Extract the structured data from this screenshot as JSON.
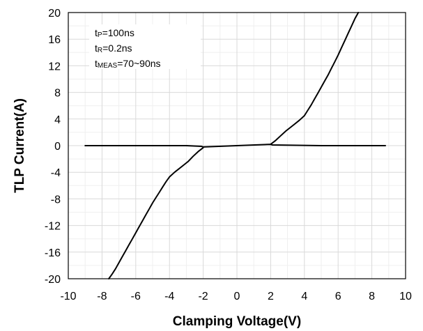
{
  "chart_data": {
    "type": "line",
    "xlabel": "Clamping Voltage(V)",
    "ylabel": "TLP Current(A)",
    "xlim": [
      -10,
      10
    ],
    "ylim": [
      -20,
      20
    ],
    "x_ticks": [
      -10,
      -8,
      -6,
      -4,
      -2,
      0,
      2,
      4,
      6,
      8,
      10
    ],
    "y_ticks": [
      -20,
      -16,
      -12,
      -8,
      -4,
      0,
      4,
      8,
      12,
      16,
      20
    ],
    "x_minor_step": 1,
    "y_minor_step": 2,
    "grid": true,
    "annotations": [
      {
        "main": "t",
        "sub": "P",
        "rest": "=100ns"
      },
      {
        "main": "t",
        "sub": "R",
        "rest": "=0.2ns"
      },
      {
        "main": "t",
        "sub": "MEAS",
        "rest": "=70~90ns"
      }
    ],
    "series": [
      {
        "x": [
          -9.0,
          -6.0,
          -3.0,
          -2.1,
          -2.0,
          0.0,
          2.0,
          2.1,
          5.0,
          8.8
        ],
        "y": [
          0.0,
          0.0,
          0.0,
          -0.1,
          -0.2,
          0.0,
          0.2,
          0.1,
          0.0,
          0.0
        ]
      },
      {
        "x": [
          2.0,
          2.3,
          2.6,
          2.9,
          3.3,
          3.7,
          4.0,
          4.2,
          4.4,
          4.6,
          4.8,
          5.0,
          5.2,
          5.4,
          5.6,
          5.8,
          6.0,
          6.2,
          6.4,
          6.6,
          6.8,
          7.0,
          7.2
        ],
        "y": [
          0.2,
          0.8,
          1.5,
          2.2,
          3.0,
          3.8,
          4.5,
          5.3,
          6.1,
          7.0,
          7.9,
          8.8,
          9.7,
          10.6,
          11.6,
          12.6,
          13.6,
          14.7,
          15.8,
          16.9,
          18.0,
          19.1,
          20.0
        ]
      },
      {
        "x": [
          -2.0,
          -2.3,
          -2.6,
          -2.9,
          -3.3,
          -3.7,
          -4.0,
          -4.2,
          -4.4,
          -4.6,
          -4.8,
          -5.0,
          -5.2,
          -5.4,
          -5.6,
          -5.8,
          -6.0,
          -6.2,
          -6.4,
          -6.6,
          -6.8,
          -7.0,
          -7.2,
          -7.4,
          -7.6
        ],
        "y": [
          -0.3,
          -0.9,
          -1.6,
          -2.4,
          -3.2,
          -4.0,
          -4.7,
          -5.4,
          -6.2,
          -7.0,
          -7.8,
          -8.6,
          -9.5,
          -10.4,
          -11.3,
          -12.2,
          -13.1,
          -14.0,
          -14.9,
          -15.8,
          -16.7,
          -17.6,
          -18.5,
          -19.3,
          -20.0
        ]
      }
    ]
  }
}
